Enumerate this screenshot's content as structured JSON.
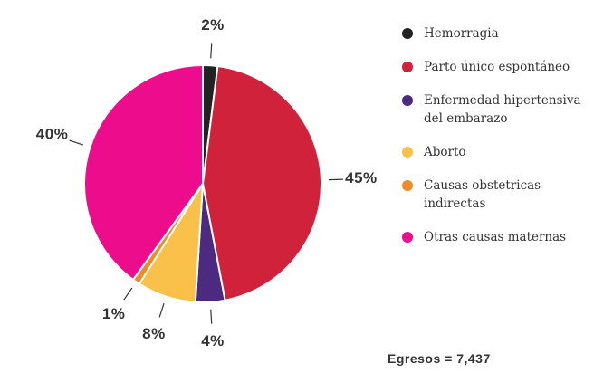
{
  "chart_data": {
    "type": "pie",
    "categories": [
      "Hemorragia",
      "Parto único espontáneo",
      "Enfermedad hipertensiva del embarazo",
      "Aborto",
      "Causas obstetricas indirectas",
      "Otras causas maternas"
    ],
    "values": [
      2,
      45,
      4,
      8,
      1,
      40
    ],
    "value_labels": [
      "2%",
      "45%",
      "4%",
      "8%",
      "1%",
      "40%"
    ],
    "colors": [
      "#222222",
      "#d0223a",
      "#4b2a7f",
      "#f9c04a",
      "#f08a24",
      "#ec0c8c"
    ],
    "annotation": "Egresos = 7,437"
  }
}
